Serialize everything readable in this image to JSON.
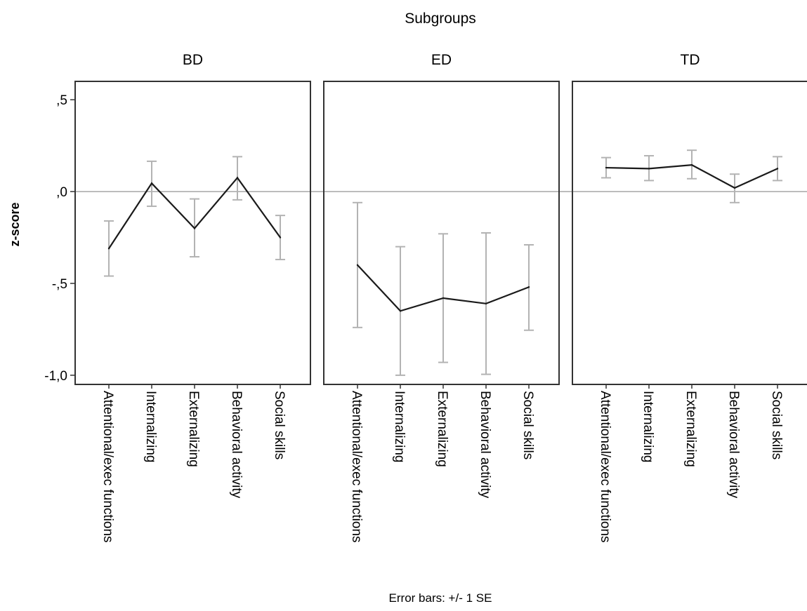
{
  "chart_data": {
    "type": "line",
    "title": "Subgroups",
    "ylabel": "z-score",
    "footnote": "Error bars: +/- 1 SE",
    "categories": [
      "Attentional/exec functions",
      "Internalizing",
      "Externalizing",
      "Behavioral activity",
      "Social skills"
    ],
    "ylim": [
      -1.05,
      0.6
    ],
    "yticks": [
      0.5,
      0.0,
      -0.5,
      -1.0
    ],
    "ytick_labels": [
      ",5",
      ",0",
      "-,5",
      "-1,0"
    ],
    "reference_line": 0,
    "colors": {
      "line": "#1a1a1a",
      "error_bar": "#b3b3b3",
      "reference": "#a6a6a6",
      "frame": "#333333"
    },
    "panels": [
      {
        "name": "BD",
        "values": [
          -0.31,
          0.045,
          -0.2,
          0.075,
          -0.25
        ],
        "lower": [
          -0.46,
          -0.08,
          -0.355,
          -0.045,
          -0.37
        ],
        "upper": [
          -0.16,
          0.165,
          -0.04,
          0.19,
          -0.13
        ]
      },
      {
        "name": "ED",
        "values": [
          -0.4,
          -0.65,
          -0.58,
          -0.61,
          -0.52
        ],
        "lower": [
          -0.74,
          -1.0,
          -0.93,
          -0.995,
          -0.755
        ],
        "upper": [
          -0.06,
          -0.3,
          -0.23,
          -0.225,
          -0.29
        ]
      },
      {
        "name": "TD",
        "values": [
          0.13,
          0.125,
          0.145,
          0.02,
          0.125
        ],
        "lower": [
          0.075,
          0.06,
          0.07,
          -0.06,
          0.06
        ],
        "upper": [
          0.185,
          0.195,
          0.225,
          0.095,
          0.19
        ]
      }
    ]
  }
}
